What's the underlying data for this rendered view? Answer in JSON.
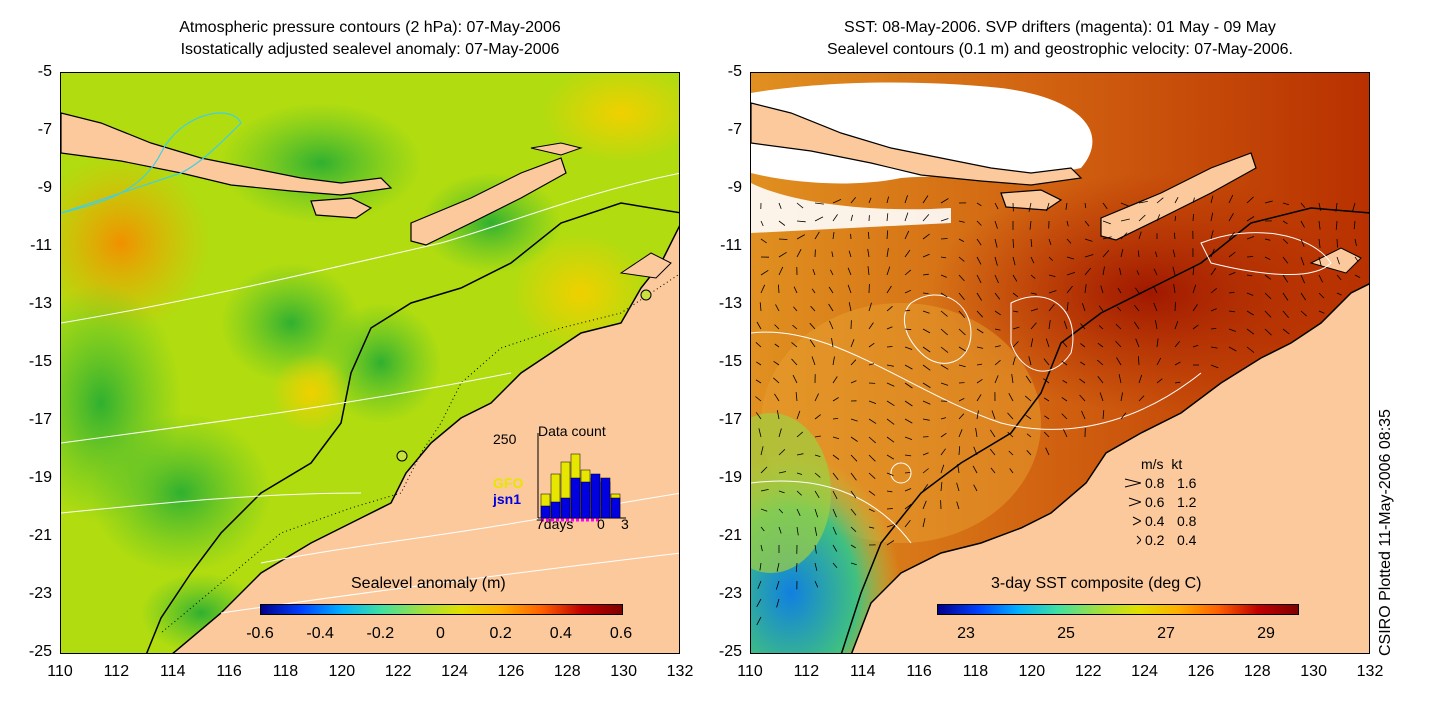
{
  "left_panel": {
    "title_line1": "Atmospheric pressure contours (2 hPa): 07-May-2006",
    "title_line2": "Isostatically adjusted sealevel anomaly: 07-May-2006",
    "colorbar_label": "Sealevel anomaly (m)",
    "colorbar_ticks": [
      "-0.6",
      "-0.4",
      "-0.2",
      "0",
      "0.2",
      "0.4",
      "0.6"
    ],
    "inset": {
      "title": "Data count",
      "max_label": "250",
      "days_label": "7days",
      "zero_label": "0",
      "three_label": "3",
      "sat1": "GFO",
      "sat2": "jsn1",
      "sat1_color": "#e6e600",
      "sat2_color": "#0000e0",
      "bars_sat1": [
        0.3,
        0.55,
        0.7,
        0.8,
        0.6,
        0.5,
        0.45,
        0.3
      ],
      "bars_sat2": [
        0.15,
        0.2,
        0.25,
        0.5,
        0.45,
        0.55,
        0.5,
        0.25
      ]
    }
  },
  "right_panel": {
    "title_line1": "SST: 08-May-2006. SVP drifters (magenta): 01 May - 09 May",
    "title_line2": "Sealevel contours (0.1 m) and geostrophic velocity: 07-May-2006.",
    "colorbar_label": "3-day SST composite (deg C)",
    "colorbar_ticks": [
      "23",
      "25",
      "27",
      "29"
    ],
    "legend": {
      "header_ms": "m/s",
      "header_kt": "kt",
      "rows": [
        {
          "ms": "0.8",
          "kt": "1.6"
        },
        {
          "ms": "0.6",
          "kt": "1.2"
        },
        {
          "ms": "0.4",
          "kt": "0.8"
        },
        {
          "ms": "0.2",
          "kt": "0.4"
        }
      ]
    }
  },
  "axes": {
    "y_ticks": [
      "-5",
      "-7",
      "-9",
      "-11",
      "-13",
      "-15",
      "-17",
      "-19",
      "-21",
      "-23",
      "-25"
    ],
    "x_ticks": [
      "110",
      "112",
      "114",
      "116",
      "118",
      "120",
      "122",
      "124",
      "126",
      "128",
      "130",
      "132"
    ]
  },
  "credit": "CSIRO Plotted 11-May-2006 08:35",
  "colors": {
    "land": "#fbc99c",
    "ocean_mid": "#b8e000",
    "ocean_green": "#40c020",
    "sst_warm": "#c04000",
    "sst_mid": "#e08020"
  }
}
